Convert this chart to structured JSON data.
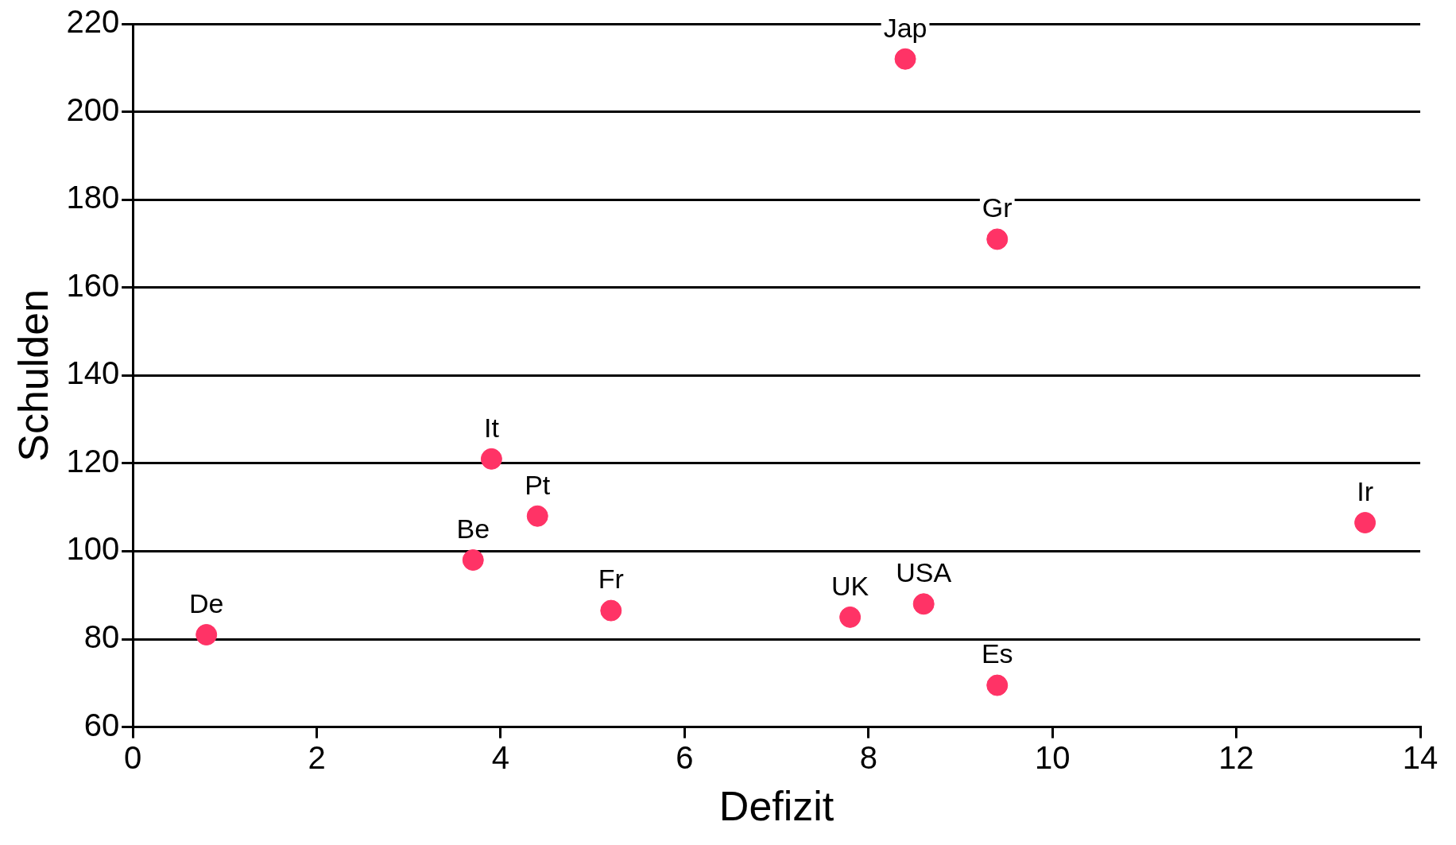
{
  "chart_data": {
    "type": "scatter",
    "xlabel": "Defizit",
    "ylabel": "Schulden",
    "x": [
      0.8,
      3.7,
      3.9,
      4.4,
      5.2,
      7.8,
      8.6,
      9.4,
      9.4,
      8.4,
      13.4
    ],
    "series": [
      {
        "color": "#ff3366",
        "values": [
          81,
          98,
          121,
          108,
          86.5,
          85,
          88,
          69.5,
          171,
          212,
          106.5
        ]
      }
    ],
    "xlim": [
      0,
      14
    ],
    "xticks": [
      0,
      2,
      4,
      6,
      8,
      10,
      12,
      14
    ],
    "ylim": [
      60,
      220
    ],
    "yticks": [
      60,
      80,
      100,
      120,
      140,
      160,
      180,
      200,
      220
    ],
    "grid": "y",
    "marker": "circle",
    "legend": false,
    "annotations": [
      {
        "text": "De",
        "x": 0.8,
        "y": 81
      },
      {
        "text": "Be",
        "x": 3.7,
        "y": 98
      },
      {
        "text": "It",
        "x": 3.9,
        "y": 121
      },
      {
        "text": "Pt",
        "x": 4.4,
        "y": 108
      },
      {
        "text": "Fr",
        "x": 5.2,
        "y": 86.5
      },
      {
        "text": "UK",
        "x": 7.8,
        "y": 85
      },
      {
        "text": "USA",
        "x": 8.6,
        "y": 88
      },
      {
        "text": "Es",
        "x": 9.4,
        "y": 69.5
      },
      {
        "text": "Gr",
        "x": 9.4,
        "y": 171
      },
      {
        "text": "Jap",
        "x": 8.4,
        "y": 212
      },
      {
        "text": "Ir",
        "x": 13.4,
        "y": 106.5
      }
    ]
  }
}
